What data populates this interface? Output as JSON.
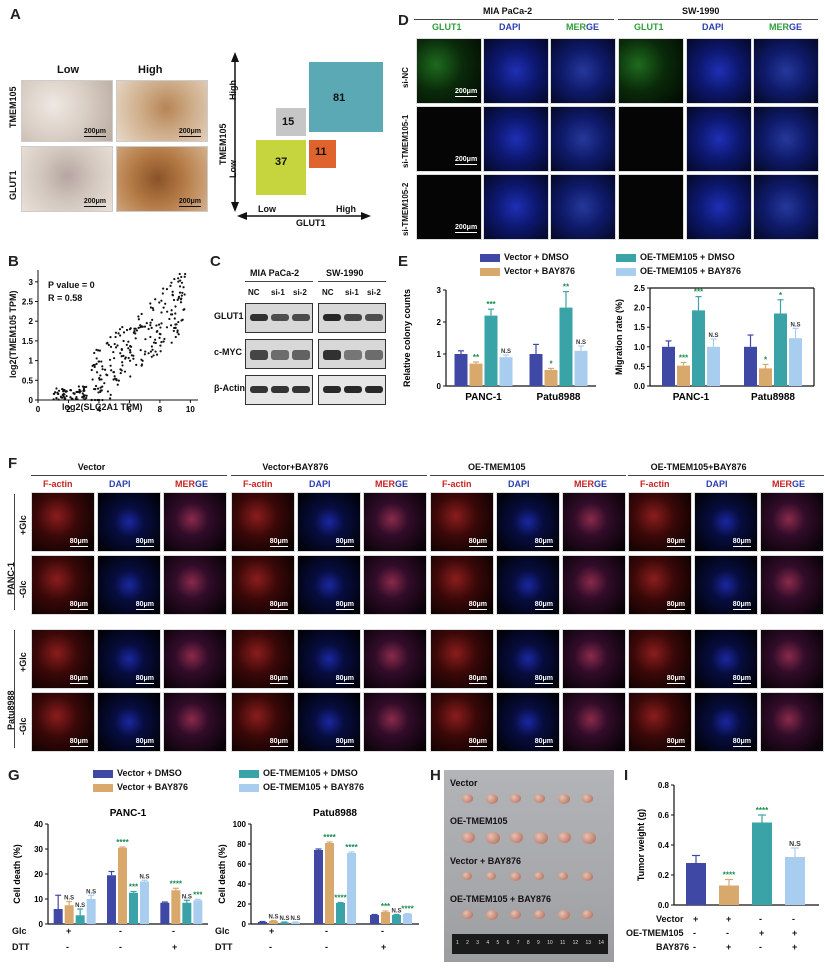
{
  "colors": {
    "vector_dmso": "#3f48a5",
    "vector_bay": "#d9a86c",
    "oe_dmso": "#3aa3a8",
    "oe_bay": "#a9cdee",
    "sig": "#1a8a4e",
    "quad_15": "#c6c6c6",
    "quad_81": "#5aa9b5",
    "quad_37": "#c6d43d",
    "quad_11": "#e0622c"
  },
  "panelA": {
    "letter": "A",
    "low": "Low",
    "high": "High",
    "row1": "TMEM105",
    "row2": "GLUT1",
    "scale": "200μm",
    "quad": {
      "y_title": "TMEM105",
      "y_high": "High",
      "y_low": "Low",
      "x_title": "GLUT1",
      "x_low": "Low",
      "x_high": "High",
      "n_hh": "81",
      "n_lh": "15",
      "n_ll": "37",
      "n_hl": "11"
    }
  },
  "panelB": {
    "letter": "B",
    "pvalue": "P value = 0",
    "r": "R = 0.58",
    "ylabel": "log2(TMEM105 TPM)",
    "xlabel": "log2(SLC2A1 TPM)"
  },
  "panelC": {
    "letter": "C",
    "cell1": "MIA PaCa-2",
    "cell2": "SW-1990",
    "lanes": [
      "NC",
      "si-1",
      "si-2",
      "NC",
      "si-1",
      "si-2"
    ],
    "rows": [
      "GLUT1",
      "c-MYC",
      "β-Actin"
    ]
  },
  "panelD": {
    "letter": "D",
    "cell1": "MIA PaCa-2",
    "cell2": "SW-1990",
    "cols": [
      "GLUT1",
      "DAPI",
      "MERGE",
      "GLUT1",
      "DAPI",
      "MERGE"
    ],
    "merge_a": "MER",
    "merge_b": "GE",
    "rows": [
      "si-NC",
      "si-TMEM105-1",
      "si-TMEM105-2"
    ],
    "scale": "200μm"
  },
  "panelE": {
    "letter": "E",
    "legend": [
      "Vector + DMSO",
      "Vector + BAY876",
      "OE-TMEM105 + DMSO",
      "OE-TMEM105 + BAY876"
    ]
  },
  "panelF": {
    "letter": "F",
    "groups": [
      "Vector",
      "Vector+BAY876",
      "OE-TMEM105",
      "OE-TMEM105+BAY876"
    ],
    "cols": [
      "F-actin",
      "DAPI",
      "MERGE"
    ],
    "merge_a": "MER",
    "merge_b": "GE",
    "cell1": "PANC-1",
    "cell2": "Patu8988",
    "cond_plus": "+Glc",
    "cond_minus": "-Glc",
    "scale": "80μm"
  },
  "panelG": {
    "letter": "G",
    "legend": [
      "Vector + DMSO",
      "Vector + BAY876",
      "OE-TMEM105 + DMSO",
      "OE-TMEM105 + BAY876"
    ],
    "glc_label": "Glc",
    "dtt_label": "DTT",
    "glc": [
      "+",
      "-",
      "-"
    ],
    "dtt": [
      "-",
      "-",
      "+"
    ]
  },
  "panelH": {
    "letter": "H",
    "rows": [
      "Vector",
      "OE-TMEM105",
      "Vector + BAY876",
      "OE-TMEM105 + BAY876"
    ],
    "ruler": [
      "1",
      "2",
      "3",
      "4",
      "5",
      "6",
      "7",
      "8",
      "9",
      "10",
      "11",
      "12",
      "13",
      "14"
    ]
  },
  "panelI": {
    "letter": "I",
    "row_labels": [
      "Vector",
      "OE-TMEM105",
      "BAY876"
    ],
    "signs": [
      [
        "+",
        "+",
        "-",
        "-"
      ],
      [
        "-",
        "-",
        "+",
        "+"
      ],
      [
        "-",
        "+",
        "-",
        "+"
      ]
    ]
  },
  "chart_data": [
    {
      "id": "E-colony",
      "type": "bar",
      "ylabel": "Relative colony counts",
      "categories": [
        "PANC-1",
        "Patu8988"
      ],
      "ylim": [
        0,
        3
      ],
      "yticks": [
        "0",
        "1",
        "2",
        "3"
      ],
      "series": [
        {
          "name": "Vector + DMSO",
          "values": [
            1.0,
            1.0
          ],
          "err": [
            0.1,
            0.3
          ],
          "sig": [
            "",
            ""
          ]
        },
        {
          "name": "Vector + BAY876",
          "values": [
            0.7,
            0.5
          ],
          "err": [
            0.05,
            0.05
          ],
          "sig": [
            "**",
            "*"
          ]
        },
        {
          "name": "OE-TMEM105 + DMSO",
          "values": [
            2.2,
            2.45
          ],
          "err": [
            0.2,
            0.5
          ],
          "sig": [
            "***",
            "**"
          ]
        },
        {
          "name": "OE-TMEM105 + BAY876",
          "values": [
            0.9,
            1.1
          ],
          "err": [
            0.07,
            0.15
          ],
          "sig": [
            "N.S",
            "N.S"
          ]
        }
      ]
    },
    {
      "id": "E-migration",
      "type": "bar",
      "ylabel": "Migration rate (%)",
      "categories": [
        "PANC-1",
        "Patu8988"
      ],
      "ylim": [
        0,
        2.5
      ],
      "yticks": [
        "0.0",
        "0.5",
        "1.0",
        "1.5",
        "2.0",
        "2.5"
      ],
      "series": [
        {
          "name": "Vector + DMSO",
          "values": [
            1.0,
            1.0
          ],
          "err": [
            0.15,
            0.3
          ],
          "sig": [
            "",
            ""
          ]
        },
        {
          "name": "Vector + BAY876",
          "values": [
            0.52,
            0.45
          ],
          "err": [
            0.08,
            0.1
          ],
          "sig": [
            "***",
            "*"
          ]
        },
        {
          "name": "OE-TMEM105 + DMSO",
          "values": [
            1.93,
            1.85
          ],
          "err": [
            0.35,
            0.35
          ],
          "sig": [
            "***",
            "*"
          ]
        },
        {
          "name": "OE-TMEM105 + BAY876",
          "values": [
            1.0,
            1.22
          ],
          "err": [
            0.2,
            0.25
          ],
          "sig": [
            "N.S",
            "N.S"
          ]
        }
      ]
    },
    {
      "id": "G-panc1",
      "type": "bar",
      "title": "PANC-1",
      "ylabel": "Cell death (%)",
      "categories": [
        "g1",
        "g2",
        "g3"
      ],
      "ylim": [
        0,
        40
      ],
      "yticks": [
        "0",
        "10",
        "20",
        "30",
        "40"
      ],
      "series": [
        {
          "name": "Vector + DMSO",
          "values": [
            6,
            19.5,
            8.5
          ],
          "err": [
            5.5,
            1.5,
            0.3
          ],
          "sig": [
            "",
            "",
            ""
          ]
        },
        {
          "name": "Vector + BAY876",
          "values": [
            7.5,
            30.5,
            13.5
          ],
          "err": [
            1.5,
            0.3,
            0.8
          ],
          "sig": [
            "N.S",
            "****",
            "****"
          ]
        },
        {
          "name": "OE-TMEM105 + DMSO",
          "values": [
            3.5,
            12.5,
            8.5
          ],
          "err": [
            2.5,
            0.5,
            1
          ],
          "sig": [
            "N.S",
            "***",
            "N.S"
          ]
        },
        {
          "name": "OE-TMEM105 + BAY876",
          "values": [
            10,
            17,
            9.5
          ],
          "err": [
            1.5,
            0.5,
            0.4
          ],
          "sig": [
            "N.S",
            "N.S",
            "***"
          ]
        }
      ]
    },
    {
      "id": "G-patu",
      "type": "bar",
      "title": "Patu8988",
      "ylabel": "Cell death (%)",
      "categories": [
        "g1",
        "g2",
        "g3"
      ],
      "ylim": [
        0,
        100
      ],
      "yticks": [
        "0",
        "20",
        "40",
        "60",
        "80",
        "100"
      ],
      "series": [
        {
          "name": "Vector + DMSO",
          "values": [
            2,
            74,
            9
          ],
          "err": [
            0.5,
            1,
            0.5
          ],
          "sig": [
            "",
            "",
            ""
          ]
        },
        {
          "name": "Vector + BAY876",
          "values": [
            3,
            81,
            12
          ],
          "err": [
            0.5,
            1,
            1
          ],
          "sig": [
            "N.S",
            "****",
            "***"
          ]
        },
        {
          "name": "OE-TMEM105 + DMSO",
          "values": [
            1.5,
            21,
            9
          ],
          "err": [
            0.5,
            0.5,
            0.5
          ],
          "sig": [
            "N.S",
            "****",
            "N.S"
          ]
        },
        {
          "name": "OE-TMEM105 + BAY876",
          "values": [
            1.5,
            71,
            10
          ],
          "err": [
            0.5,
            1,
            0.5
          ],
          "sig": [
            "N.S",
            "****",
            "****"
          ]
        }
      ]
    },
    {
      "id": "I-weight",
      "type": "bar",
      "ylabel": "Tumor weight (g)",
      "categories": [
        "c1",
        "c2",
        "c3",
        "c4"
      ],
      "ylim": [
        0,
        0.8
      ],
      "yticks": [
        "0.0",
        "0.2",
        "0.4",
        "0.6",
        "0.8"
      ],
      "values": [
        0.28,
        0.13,
        0.55,
        0.32
      ],
      "err": [
        0.05,
        0.04,
        0.05,
        0.06
      ],
      "sig": [
        "",
        "****",
        "****",
        "N.S"
      ]
    }
  ]
}
